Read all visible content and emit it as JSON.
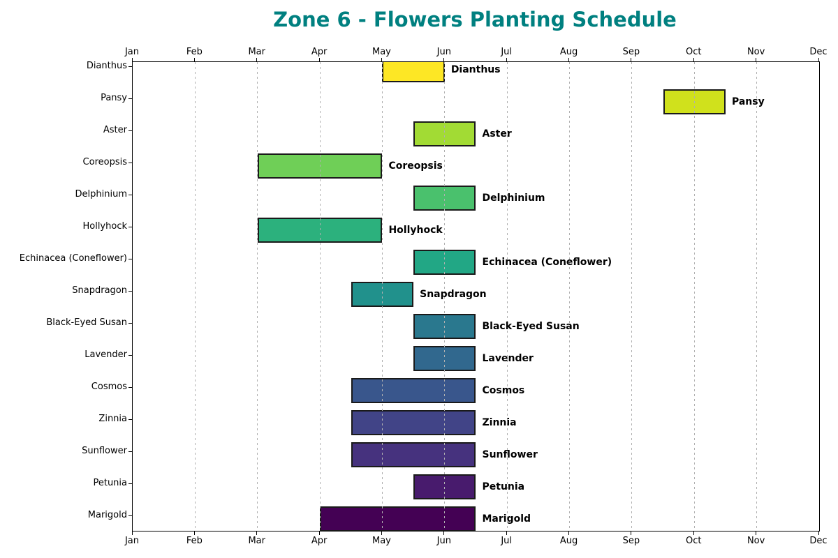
{
  "title": {
    "text": "Zone 6 - Flowers Planting Schedule",
    "color": "#008080"
  },
  "chart_data": {
    "type": "bar",
    "subtype": "gantt-horizontal-range",
    "title": "Zone 6 - Flowers Planting Schedule",
    "xlabel": "",
    "ylabel": "",
    "grid": true,
    "legend": false,
    "x_axis": {
      "tick_labels": [
        "Jan",
        "Feb",
        "Mar",
        "Apr",
        "May",
        "Jun",
        "Jul",
        "Aug",
        "Sep",
        "Oct",
        "Nov",
        "Dec"
      ],
      "range_months": [
        1,
        12
      ],
      "shown_on": [
        "top",
        "bottom"
      ]
    },
    "rows": [
      {
        "label": "Dianthus",
        "start_month": 5.0,
        "end_month": 6.0,
        "period": "May 1 - Jun 1",
        "color": "#fde725"
      },
      {
        "label": "Pansy",
        "start_month": 9.5,
        "end_month": 10.5,
        "period": "Sep 15 - Oct 15",
        "color": "#d0e11c"
      },
      {
        "label": "Aster",
        "start_month": 5.5,
        "end_month": 6.5,
        "period": "May 15 - Jun 15",
        "color": "#a2db34"
      },
      {
        "label": "Coreopsis",
        "start_month": 3.0,
        "end_month": 5.0,
        "period": "Mar 1 - May 1",
        "color": "#6fcf57"
      },
      {
        "label": "Delphinium",
        "start_month": 5.5,
        "end_month": 6.5,
        "period": "May 15 - Jun 15",
        "color": "#4ac16d"
      },
      {
        "label": "Hollyhock",
        "start_month": 3.0,
        "end_month": 5.0,
        "period": "Mar 1 - May 1",
        "color": "#2cb17d"
      },
      {
        "label": "Echinacea (Coneflower)",
        "start_month": 5.5,
        "end_month": 6.5,
        "period": "May 15 - Jun 15",
        "color": "#22a785"
      },
      {
        "label": "Snapdragon",
        "start_month": 4.5,
        "end_month": 5.5,
        "period": "Apr 15 - May 15",
        "color": "#21918c"
      },
      {
        "label": "Black-Eyed Susan",
        "start_month": 5.5,
        "end_month": 6.5,
        "period": "May 15 - Jun 15",
        "color": "#2a788e"
      },
      {
        "label": "Lavender",
        "start_month": 5.5,
        "end_month": 6.5,
        "period": "May 15 - Jun 15",
        "color": "#31688e"
      },
      {
        "label": "Cosmos",
        "start_month": 4.5,
        "end_month": 6.5,
        "period": "Apr 15 - Jun 15",
        "color": "#39568c"
      },
      {
        "label": "Zinnia",
        "start_month": 4.5,
        "end_month": 6.5,
        "period": "Apr 15 - Jun 15",
        "color": "#414487"
      },
      {
        "label": "Sunflower",
        "start_month": 4.5,
        "end_month": 6.5,
        "period": "Apr 15 - Jun 15",
        "color": "#46327e"
      },
      {
        "label": "Petunia",
        "start_month": 5.5,
        "end_month": 6.5,
        "period": "May 15 - Jun 15",
        "color": "#481b6d"
      },
      {
        "label": "Marigold",
        "start_month": 4.0,
        "end_month": 6.5,
        "period": "Apr 1 - Jun 15",
        "color": "#440154"
      }
    ]
  },
  "style_colors": {
    "title": "#008080",
    "bar_border": "#1a1a1a",
    "gridline": "#b0b0b0",
    "spine": "#000000",
    "text": "#000000"
  }
}
